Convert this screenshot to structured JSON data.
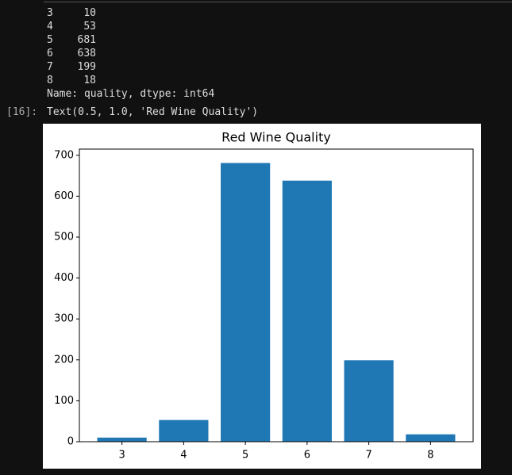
{
  "output": {
    "rows": [
      {
        "index": 3,
        "value": 10
      },
      {
        "index": 4,
        "value": 53
      },
      {
        "index": 5,
        "value": 681
      },
      {
        "index": 6,
        "value": 638
      },
      {
        "index": 7,
        "value": 199
      },
      {
        "index": 8,
        "value": 18
      }
    ],
    "footer": "Name: quality, dtype: int64",
    "prompt": "[16]:",
    "result": "Text(0.5, 1.0, 'Red Wine Quality')"
  },
  "chart_data": {
    "type": "bar",
    "title": "Red Wine Quality",
    "x": [
      3,
      4,
      5,
      6,
      7,
      8
    ],
    "values": [
      10,
      53,
      681,
      638,
      199,
      18
    ],
    "color": "#1f77b4",
    "xlim": [
      2.31,
      8.69
    ],
    "xticks": [
      3,
      4,
      5,
      6,
      7,
      8
    ],
    "ylim": [
      0,
      715.05
    ],
    "yticks": [
      0,
      100,
      200,
      300,
      400,
      500,
      600,
      700
    ]
  }
}
